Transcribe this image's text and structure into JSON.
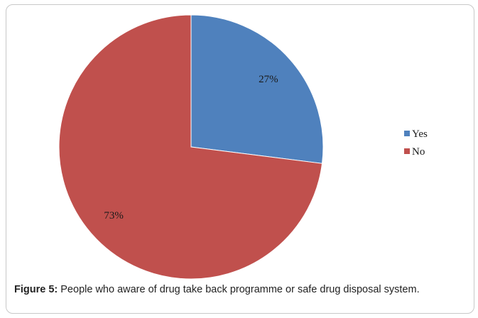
{
  "chart_data": {
    "type": "pie",
    "categories": [
      "Yes",
      "No"
    ],
    "values": [
      27,
      73
    ],
    "data_labels": [
      "27%",
      "73%"
    ],
    "colors": [
      "#4f81bd",
      "#c0504d"
    ],
    "legend_position": "right",
    "start_angle": "12 o'clock, clockwise"
  },
  "caption": {
    "label": "Figure 5:",
    "text": " People who aware of drug take back programme or safe drug disposal system."
  }
}
